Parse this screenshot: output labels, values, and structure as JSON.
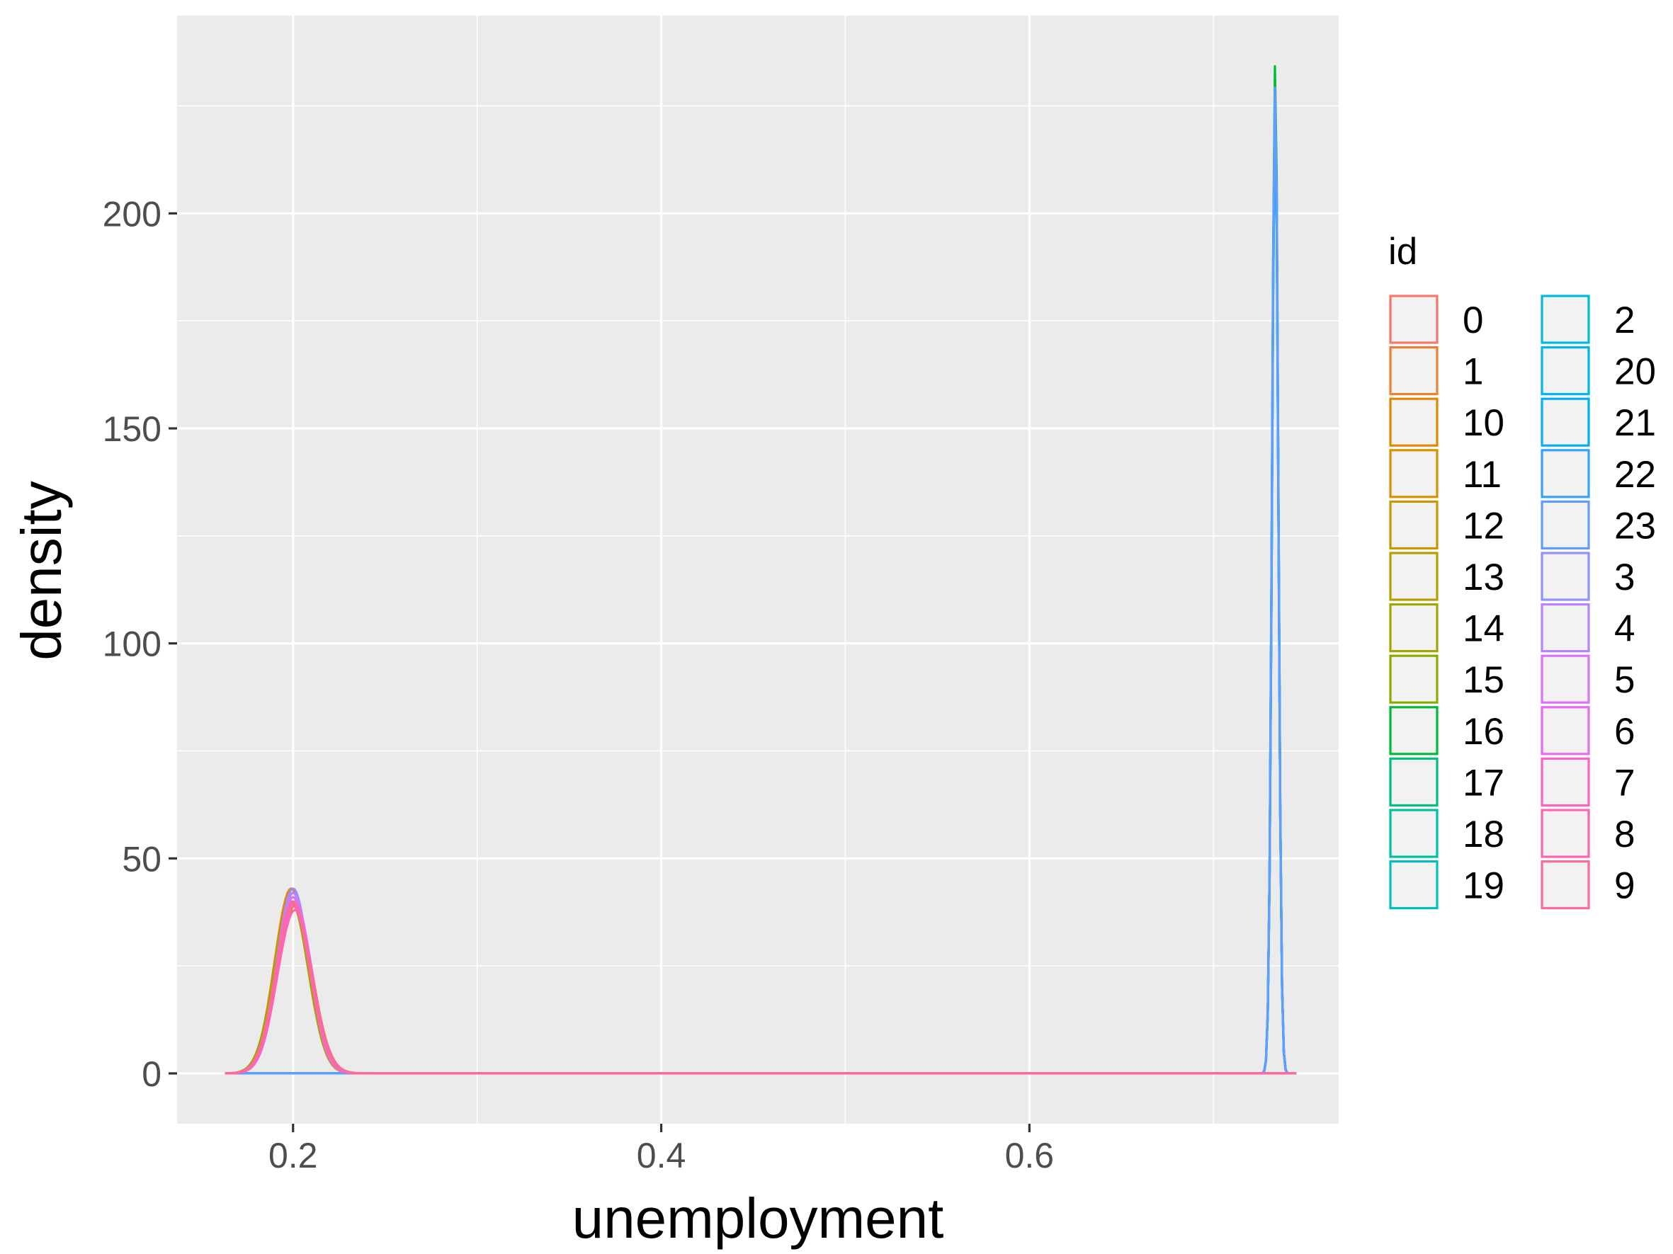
{
  "chart_data": {
    "type": "line",
    "subtype": "density",
    "title": "",
    "xlabel": "unemployment",
    "ylabel": "density",
    "xlim": [
      0.137,
      0.768
    ],
    "ylim": [
      -11.7,
      246
    ],
    "x_ticks": [
      0.2,
      0.4,
      0.6
    ],
    "x_tick_labels": [
      "0.2",
      "0.4",
      "0.6"
    ],
    "x_minor_ticks": [
      0.3,
      0.5,
      0.7
    ],
    "y_ticks": [
      0,
      50,
      100,
      150,
      200
    ],
    "y_tick_labels": [
      "0",
      "50",
      "100",
      "150",
      "200"
    ],
    "y_minor_ticks": [
      25,
      75,
      125,
      175,
      225
    ],
    "grid": true,
    "legend": {
      "title": "id",
      "placement": "right",
      "columns": 2,
      "entries": [
        "0",
        "1",
        "10",
        "11",
        "12",
        "13",
        "14",
        "15",
        "16",
        "17",
        "18",
        "19",
        "2",
        "20",
        "21",
        "22",
        "23",
        "3",
        "4",
        "5",
        "6",
        "7",
        "8",
        "9"
      ]
    },
    "series": [
      {
        "name": "0",
        "color": "#F8766D",
        "group": "low",
        "peak_x": 0.201,
        "peak_y": 38,
        "sd": 0.0095
      },
      {
        "name": "1",
        "color": "#F07F2F",
        "group": "low",
        "peak_x": 0.2,
        "peak_y": 40,
        "sd": 0.0092
      },
      {
        "name": "10",
        "color": "#E58700",
        "group": "low",
        "peak_x": 0.199,
        "peak_y": 43,
        "sd": 0.009
      },
      {
        "name": "11",
        "color": "#D89000",
        "group": "low",
        "peak_x": 0.2,
        "peak_y": 41,
        "sd": 0.0091
      },
      {
        "name": "12",
        "color": "#C99800",
        "group": "low",
        "peak_x": 0.201,
        "peak_y": 39,
        "sd": 0.0094
      },
      {
        "name": "13",
        "color": "#B79F00",
        "group": "low",
        "peak_x": 0.2,
        "peak_y": 42,
        "sd": 0.009
      },
      {
        "name": "14",
        "color": "#A3A500",
        "group": "low",
        "peak_x": 0.199,
        "peak_y": 40,
        "sd": 0.0092
      },
      {
        "name": "15",
        "color": "#8BAB00",
        "group": "high",
        "peak_x": 0.7335,
        "peak_y": 232,
        "sd": 0.0017
      },
      {
        "name": "16",
        "color": "#00BA38",
        "group": "high",
        "peak_x": 0.7335,
        "peak_y": 235,
        "sd": 0.0017
      },
      {
        "name": "17",
        "color": "#00BF7D",
        "group": "high",
        "peak_x": 0.7335,
        "peak_y": 228,
        "sd": 0.0017
      },
      {
        "name": "18",
        "color": "#00C0A3",
        "group": "high",
        "peak_x": 0.7335,
        "peak_y": 226,
        "sd": 0.0017
      },
      {
        "name": "19",
        "color": "#00BFC4",
        "group": "high",
        "peak_x": 0.7335,
        "peak_y": 224,
        "sd": 0.0017
      },
      {
        "name": "2",
        "color": "#00BCD8",
        "group": "high",
        "peak_x": 0.7335,
        "peak_y": 222,
        "sd": 0.0017
      },
      {
        "name": "20",
        "color": "#00B6EB",
        "group": "high",
        "peak_x": 0.7335,
        "peak_y": 225,
        "sd": 0.0017
      },
      {
        "name": "21",
        "color": "#00B0F6",
        "group": "high",
        "peak_x": 0.7335,
        "peak_y": 227,
        "sd": 0.0017
      },
      {
        "name": "22",
        "color": "#35A2FF",
        "group": "high",
        "peak_x": 0.7335,
        "peak_y": 229,
        "sd": 0.0017
      },
      {
        "name": "23",
        "color": "#619CFF",
        "group": "high",
        "peak_x": 0.7335,
        "peak_y": 230,
        "sd": 0.0017
      },
      {
        "name": "3",
        "color": "#9590FF",
        "group": "low",
        "peak_x": 0.2,
        "peak_y": 43,
        "sd": 0.0088
      },
      {
        "name": "4",
        "color": "#B983FF",
        "group": "low",
        "peak_x": 0.2,
        "peak_y": 42,
        "sd": 0.0089
      },
      {
        "name": "5",
        "color": "#DB72FB",
        "group": "low",
        "peak_x": 0.2,
        "peak_y": 41,
        "sd": 0.009
      },
      {
        "name": "6",
        "color": "#E76BF3",
        "group": "low",
        "peak_x": 0.201,
        "peak_y": 40,
        "sd": 0.0091
      },
      {
        "name": "7",
        "color": "#FF61C3",
        "group": "low",
        "peak_x": 0.2,
        "peak_y": 39,
        "sd": 0.0093
      },
      {
        "name": "8",
        "color": "#FF64B0",
        "group": "low",
        "peak_x": 0.201,
        "peak_y": 38,
        "sd": 0.0094
      },
      {
        "name": "9",
        "color": "#FF699C",
        "group": "low",
        "peak_x": 0.2,
        "peak_y": 40,
        "sd": 0.0092
      }
    ],
    "support": [
      0.163,
      0.745
    ]
  }
}
